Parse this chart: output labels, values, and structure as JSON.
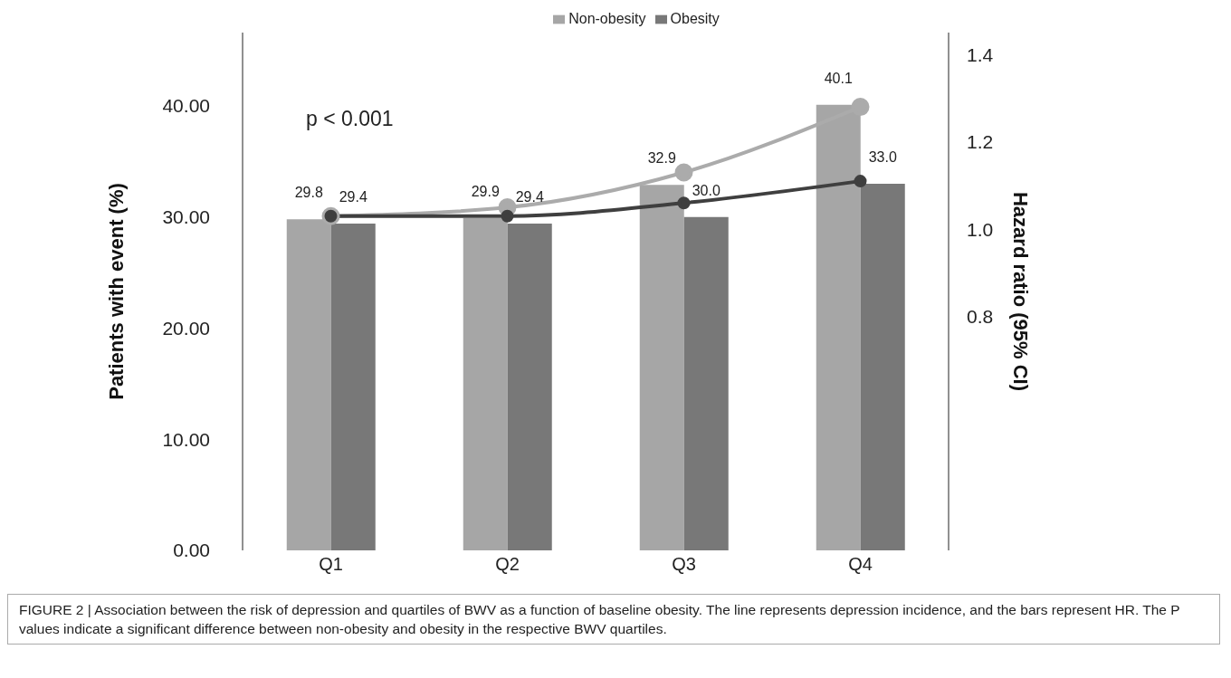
{
  "chart_data": {
    "type": "bar",
    "categories": [
      "Q1",
      "Q2",
      "Q3",
      "Q4"
    ],
    "ylabel": "Patients with event (%)",
    "y2label": "Hazard ratio (95% CI)",
    "ylim": [
      0,
      46.6
    ],
    "yticks": [
      {
        "value": 0,
        "label": "0.00"
      },
      {
        "value": 10,
        "label": "10.00"
      },
      {
        "value": 20,
        "label": "20.00"
      },
      {
        "value": 30,
        "label": "30.00"
      },
      {
        "value": 40,
        "label": "40.00"
      }
    ],
    "y2lim": [
      0.265,
      1.45
    ],
    "y2ticks": [
      {
        "value": 0.8,
        "label": "0.8"
      },
      {
        "value": 1.0,
        "label": "1.0"
      },
      {
        "value": 1.2,
        "label": "1.2"
      },
      {
        "value": 1.4,
        "label": "1.4"
      }
    ],
    "series": [
      {
        "name": "Non-obesity",
        "color": "#a6a6a6",
        "values": [
          29.8,
          29.9,
          32.9,
          40.1
        ],
        "value_labels": [
          "29.8",
          "29.9",
          "32.9",
          "40.1"
        ]
      },
      {
        "name": "Obesity",
        "color": "#787878",
        "values": [
          29.4,
          29.4,
          30.0,
          33.0
        ],
        "value_labels": [
          "29.4",
          "29.4",
          "30.0",
          "33.0"
        ]
      },
      {
        "type": "line",
        "axis": "y2",
        "color": "#ababab",
        "values": [
          1.03,
          1.05,
          1.13,
          1.28
        ]
      },
      {
        "type": "line",
        "axis": "y2",
        "color": "#3f3f3f",
        "values": [
          1.03,
          1.03,
          1.06,
          1.11
        ]
      }
    ],
    "marker": "circle",
    "legend": "top",
    "grid": false,
    "annotations": [
      "p < 0.001",
      "FIGURE 2 | Association between the risk of depression and quartiles of BWV as a function of baseline obesity. The line represents depression incidence, and the bars represent HR. The P values indicate a significant difference between non-obesity and obesity in the respective BWV quartiles."
    ]
  }
}
